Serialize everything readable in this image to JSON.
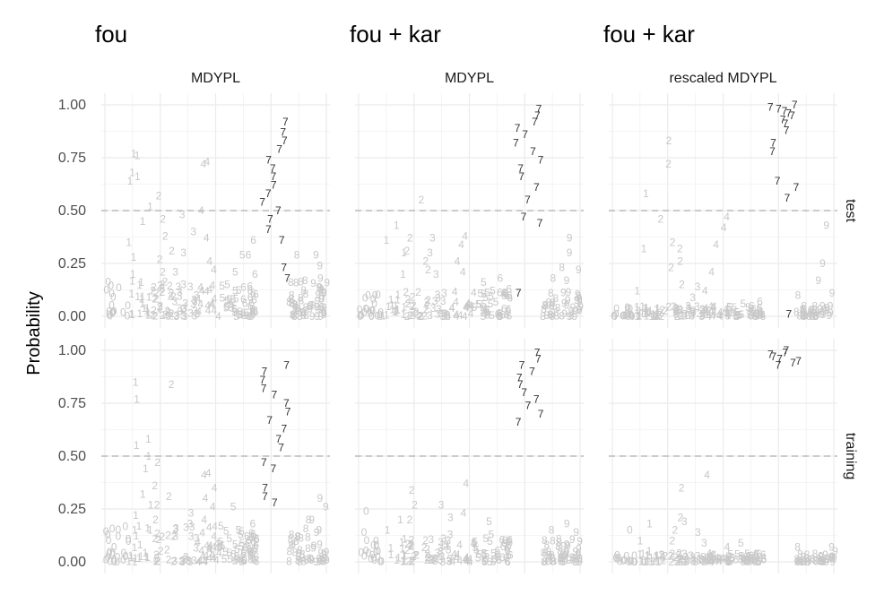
{
  "chart_data": {
    "type": "scatter",
    "ylabel": "Probability",
    "yticks": [
      "0.00",
      "0.25",
      "0.50",
      "0.75",
      "1.00"
    ],
    "ylim": [
      0,
      1
    ],
    "reference_line": 0.5,
    "colors": {
      "highlight": "#333333",
      "other": "#c8c8c8",
      "grid": "#ebebeb",
      "refline": "#bbbbbb"
    },
    "column_titles": [
      "fou",
      "fou + kar",
      "fou + kar"
    ],
    "column_strips": [
      "MDYPL",
      "MDYPL",
      "rescaled MDYPL"
    ],
    "row_strips": [
      "test",
      "training"
    ],
    "digit_groups": [
      "0",
      "1",
      "2",
      "3",
      "4",
      "5",
      "6",
      "7",
      "8",
      "9"
    ],
    "panels": [
      {
        "col": 0,
        "row": 0,
        "points": [
          [
            "1",
            0.77
          ],
          [
            "1",
            0.76
          ],
          [
            "1",
            0.68
          ],
          [
            "1",
            0.66
          ],
          [
            "1",
            0.64
          ],
          [
            "1",
            0.52
          ],
          [
            "1",
            0.45
          ],
          [
            "1",
            0.35
          ],
          [
            "1",
            0.28
          ],
          [
            "1",
            0.2
          ],
          [
            "2",
            0.57
          ],
          [
            "2",
            0.46
          ],
          [
            "2",
            0.38
          ],
          [
            "2",
            0.31
          ],
          [
            "2",
            0.27
          ],
          [
            "2",
            0.21
          ],
          [
            "2",
            0.15
          ],
          [
            "2",
            0.12
          ],
          [
            "3",
            0.48
          ],
          [
            "3",
            0.4
          ],
          [
            "3",
            0.3
          ],
          [
            "3",
            0.21
          ],
          [
            "3",
            0.14
          ],
          [
            "3",
            0.1
          ],
          [
            "4",
            0.73
          ],
          [
            "4",
            0.72
          ],
          [
            "4",
            0.5
          ],
          [
            "4",
            0.37
          ],
          [
            "4",
            0.26
          ],
          [
            "4",
            0.22
          ],
          [
            "4",
            0.12
          ],
          [
            "5",
            0.29
          ],
          [
            "5",
            0.21
          ],
          [
            "5",
            0.12
          ],
          [
            "5",
            0.08
          ],
          [
            "6",
            0.36
          ],
          [
            "6",
            0.29
          ],
          [
            "6",
            0.2
          ],
          [
            "6",
            0.11
          ],
          [
            "7",
            0.92
          ],
          [
            "7",
            0.87
          ],
          [
            "7",
            0.83
          ],
          [
            "7",
            0.79
          ],
          [
            "7",
            0.74
          ],
          [
            "7",
            0.7
          ],
          [
            "7",
            0.66
          ],
          [
            "7",
            0.62
          ],
          [
            "7",
            0.58
          ],
          [
            "7",
            0.54
          ],
          [
            "7",
            0.5
          ],
          [
            "7",
            0.46
          ],
          [
            "7",
            0.41
          ],
          [
            "7",
            0.36
          ],
          [
            "7",
            0.23
          ],
          [
            "7",
            0.18
          ],
          [
            "8",
            0.29
          ],
          [
            "8",
            0.16
          ],
          [
            "8",
            0.1
          ],
          [
            "9",
            0.29
          ],
          [
            "9",
            0.24
          ],
          [
            "9",
            0.18
          ],
          [
            "9",
            0.12
          ]
        ]
      },
      {
        "col": 1,
        "row": 0,
        "points": [
          [
            "1",
            0.43
          ],
          [
            "1",
            0.36
          ],
          [
            "1",
            0.3
          ],
          [
            "1",
            0.2
          ],
          [
            "2",
            0.55
          ],
          [
            "2",
            0.37
          ],
          [
            "2",
            0.31
          ],
          [
            "2",
            0.26
          ],
          [
            "2",
            0.22
          ],
          [
            "3",
            0.37
          ],
          [
            "3",
            0.3
          ],
          [
            "3",
            0.2
          ],
          [
            "4",
            0.38
          ],
          [
            "4",
            0.34
          ],
          [
            "4",
            0.26
          ],
          [
            "4",
            0.21
          ],
          [
            "5",
            0.16
          ],
          [
            "5",
            0.12
          ],
          [
            "6",
            0.18
          ],
          [
            "6",
            0.13
          ],
          [
            "7",
            0.98
          ],
          [
            "7",
            0.95
          ],
          [
            "7",
            0.92
          ],
          [
            "7",
            0.89
          ],
          [
            "7",
            0.86
          ],
          [
            "7",
            0.82
          ],
          [
            "7",
            0.78
          ],
          [
            "7",
            0.74
          ],
          [
            "7",
            0.7
          ],
          [
            "7",
            0.66
          ],
          [
            "7",
            0.61
          ],
          [
            "7",
            0.55
          ],
          [
            "7",
            0.47
          ],
          [
            "7",
            0.44
          ],
          [
            "7",
            0.11
          ],
          [
            "8",
            0.23
          ],
          [
            "8",
            0.18
          ],
          [
            "9",
            0.37
          ],
          [
            "9",
            0.3
          ],
          [
            "9",
            0.22
          ],
          [
            "9",
            0.17
          ]
        ]
      },
      {
        "col": 2,
        "row": 0,
        "points": [
          [
            "1",
            0.58
          ],
          [
            "1",
            0.32
          ],
          [
            "1",
            0.12
          ],
          [
            "2",
            0.83
          ],
          [
            "2",
            0.72
          ],
          [
            "2",
            0.46
          ],
          [
            "2",
            0.35
          ],
          [
            "2",
            0.32
          ],
          [
            "2",
            0.26
          ],
          [
            "2",
            0.23
          ],
          [
            "2",
            0.15
          ],
          [
            "3",
            0.14
          ],
          [
            "3",
            0.09
          ],
          [
            "4",
            0.47
          ],
          [
            "4",
            0.42
          ],
          [
            "4",
            0.34
          ],
          [
            "4",
            0.21
          ],
          [
            "4",
            0.12
          ],
          [
            "5",
            0.06
          ],
          [
            "6",
            0.07
          ],
          [
            "7",
            1.0
          ],
          [
            "7",
            0.99
          ],
          [
            "7",
            0.98
          ],
          [
            "7",
            0.97
          ],
          [
            "7",
            0.96
          ],
          [
            "7",
            0.95
          ],
          [
            "7",
            0.93
          ],
          [
            "7",
            0.91
          ],
          [
            "7",
            0.88
          ],
          [
            "7",
            0.82
          ],
          [
            "7",
            0.78
          ],
          [
            "7",
            0.64
          ],
          [
            "7",
            0.61
          ],
          [
            "7",
            0.56
          ],
          [
            "7",
            0.01
          ],
          [
            "8",
            0.1
          ],
          [
            "9",
            0.43
          ],
          [
            "9",
            0.25
          ],
          [
            "9",
            0.17
          ],
          [
            "9",
            0.11
          ]
        ]
      },
      {
        "col": 0,
        "row": 1,
        "points": [
          [
            "1",
            0.85
          ],
          [
            "1",
            0.77
          ],
          [
            "1",
            0.58
          ],
          [
            "1",
            0.55
          ],
          [
            "1",
            0.5
          ],
          [
            "1",
            0.44
          ],
          [
            "1",
            0.32
          ],
          [
            "1",
            0.27
          ],
          [
            "1",
            0.22
          ],
          [
            "1",
            0.15
          ],
          [
            "2",
            0.84
          ],
          [
            "2",
            0.47
          ],
          [
            "2",
            0.36
          ],
          [
            "2",
            0.31
          ],
          [
            "2",
            0.27
          ],
          [
            "2",
            0.2
          ],
          [
            "3",
            0.23
          ],
          [
            "3",
            0.18
          ],
          [
            "3",
            0.12
          ],
          [
            "4",
            0.42
          ],
          [
            "4",
            0.41
          ],
          [
            "4",
            0.35
          ],
          [
            "4",
            0.3
          ],
          [
            "4",
            0.26
          ],
          [
            "4",
            0.2
          ],
          [
            "5",
            0.26
          ],
          [
            "5",
            0.17
          ],
          [
            "5",
            0.15
          ],
          [
            "6",
            0.18
          ],
          [
            "6",
            0.12
          ],
          [
            "7",
            0.93
          ],
          [
            "7",
            0.9
          ],
          [
            "7",
            0.86
          ],
          [
            "7",
            0.82
          ],
          [
            "7",
            0.79
          ],
          [
            "7",
            0.75
          ],
          [
            "7",
            0.71
          ],
          [
            "7",
            0.67
          ],
          [
            "7",
            0.63
          ],
          [
            "7",
            0.58
          ],
          [
            "7",
            0.54
          ],
          [
            "7",
            0.47
          ],
          [
            "7",
            0.44
          ],
          [
            "7",
            0.35
          ],
          [
            "7",
            0.31
          ],
          [
            "7",
            0.28
          ],
          [
            "8",
            0.2
          ],
          [
            "8",
            0.12
          ],
          [
            "9",
            0.3
          ],
          [
            "9",
            0.26
          ],
          [
            "9",
            0.2
          ],
          [
            "9",
            0.14
          ]
        ]
      },
      {
        "col": 1,
        "row": 1,
        "points": [
          [
            "0",
            0.24
          ],
          [
            "0",
            0.14
          ],
          [
            "1",
            0.2
          ],
          [
            "1",
            0.15
          ],
          [
            "2",
            0.34
          ],
          [
            "2",
            0.27
          ],
          [
            "2",
            0.2
          ],
          [
            "3",
            0.27
          ],
          [
            "3",
            0.21
          ],
          [
            "3",
            0.13
          ],
          [
            "4",
            0.37
          ],
          [
            "4",
            0.23
          ],
          [
            "5",
            0.19
          ],
          [
            "5",
            0.13
          ],
          [
            "7",
            0.99
          ],
          [
            "7",
            0.96
          ],
          [
            "7",
            0.93
          ],
          [
            "7",
            0.9
          ],
          [
            "7",
            0.87
          ],
          [
            "7",
            0.84
          ],
          [
            "7",
            0.8
          ],
          [
            "7",
            0.77
          ],
          [
            "7",
            0.74
          ],
          [
            "7",
            0.7
          ],
          [
            "7",
            0.66
          ],
          [
            "8",
            0.15
          ],
          [
            "9",
            0.18
          ],
          [
            "9",
            0.14
          ]
        ]
      },
      {
        "col": 2,
        "row": 1,
        "points": [
          [
            "0",
            0.15
          ],
          [
            "1",
            0.18
          ],
          [
            "1",
            0.1
          ],
          [
            "1",
            0.05
          ],
          [
            "2",
            0.35
          ],
          [
            "2",
            0.21
          ],
          [
            "2",
            0.15
          ],
          [
            "2",
            0.1
          ],
          [
            "3",
            0.19
          ],
          [
            "3",
            0.14
          ],
          [
            "3",
            0.09
          ],
          [
            "4",
            0.41
          ],
          [
            "4",
            0.07
          ],
          [
            "5",
            0.09
          ],
          [
            "7",
            1.0
          ],
          [
            "7",
            0.99
          ],
          [
            "7",
            0.98
          ],
          [
            "7",
            0.97
          ],
          [
            "7",
            0.96
          ],
          [
            "7",
            0.95
          ],
          [
            "7",
            0.94
          ],
          [
            "7",
            0.93
          ],
          [
            "8",
            0.07
          ],
          [
            "9",
            0.07
          ],
          [
            "9",
            0.05
          ]
        ]
      }
    ],
    "noise_band": [
      {
        "col": 0,
        "row": 0,
        "digits": [
          "0",
          "1",
          "2",
          "3",
          "4",
          "5",
          "6",
          "8",
          "9"
        ],
        "range": [
          0.0,
          0.17
        ],
        "count": 190
      },
      {
        "col": 1,
        "row": 0,
        "digits": [
          "0",
          "1",
          "2",
          "3",
          "4",
          "5",
          "6",
          "8",
          "9"
        ],
        "range": [
          0.0,
          0.12
        ],
        "count": 170
      },
      {
        "col": 2,
        "row": 0,
        "digits": [
          "0",
          "1",
          "2",
          "3",
          "4",
          "5",
          "6",
          "8",
          "9"
        ],
        "range": [
          0.0,
          0.05
        ],
        "count": 170
      },
      {
        "col": 0,
        "row": 1,
        "digits": [
          "0",
          "1",
          "2",
          "3",
          "4",
          "5",
          "6",
          "8",
          "9"
        ],
        "range": [
          0.0,
          0.17
        ],
        "count": 190
      },
      {
        "col": 1,
        "row": 1,
        "digits": [
          "0",
          "1",
          "2",
          "3",
          "4",
          "5",
          "6",
          "8",
          "9"
        ],
        "range": [
          0.0,
          0.11
        ],
        "count": 170
      },
      {
        "col": 2,
        "row": 1,
        "digits": [
          "0",
          "1",
          "2",
          "3",
          "4",
          "5",
          "6",
          "8",
          "9"
        ],
        "range": [
          0.0,
          0.04
        ],
        "count": 170
      }
    ]
  }
}
